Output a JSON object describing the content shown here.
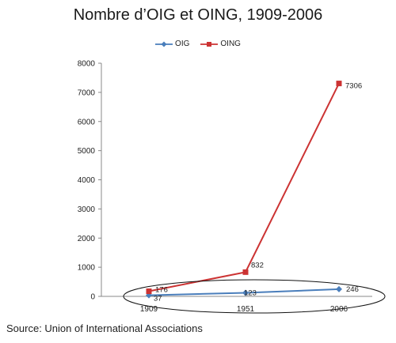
{
  "chart_data": {
    "type": "line",
    "title": "Nombre d’OIG et OING, 1909-2006",
    "categories": [
      "1909",
      "1951",
      "2006"
    ],
    "series": [
      {
        "name": "OIG",
        "values": [
          37,
          123,
          246
        ],
        "color": "#4a7ebb",
        "marker": "diamond"
      },
      {
        "name": "OING",
        "values": [
          176,
          832,
          7306
        ],
        "color": "#cc3333",
        "marker": "square"
      }
    ],
    "data_labels": [
      {
        "series": "OIG",
        "labels": [
          "37",
          "123",
          "246"
        ]
      },
      {
        "series": "OING",
        "labels": [
          "176",
          "832",
          "7306"
        ]
      }
    ],
    "ylim": [
      0,
      8000
    ],
    "yticks": [
      "0",
      "1000",
      "2000",
      "3000",
      "4000",
      "5000",
      "6000",
      "7000",
      "8000"
    ],
    "grid": false,
    "legend_position": "top",
    "annotation": "ellipse around the low-value region along the x axis"
  },
  "source": "Source: Union of International Associations"
}
